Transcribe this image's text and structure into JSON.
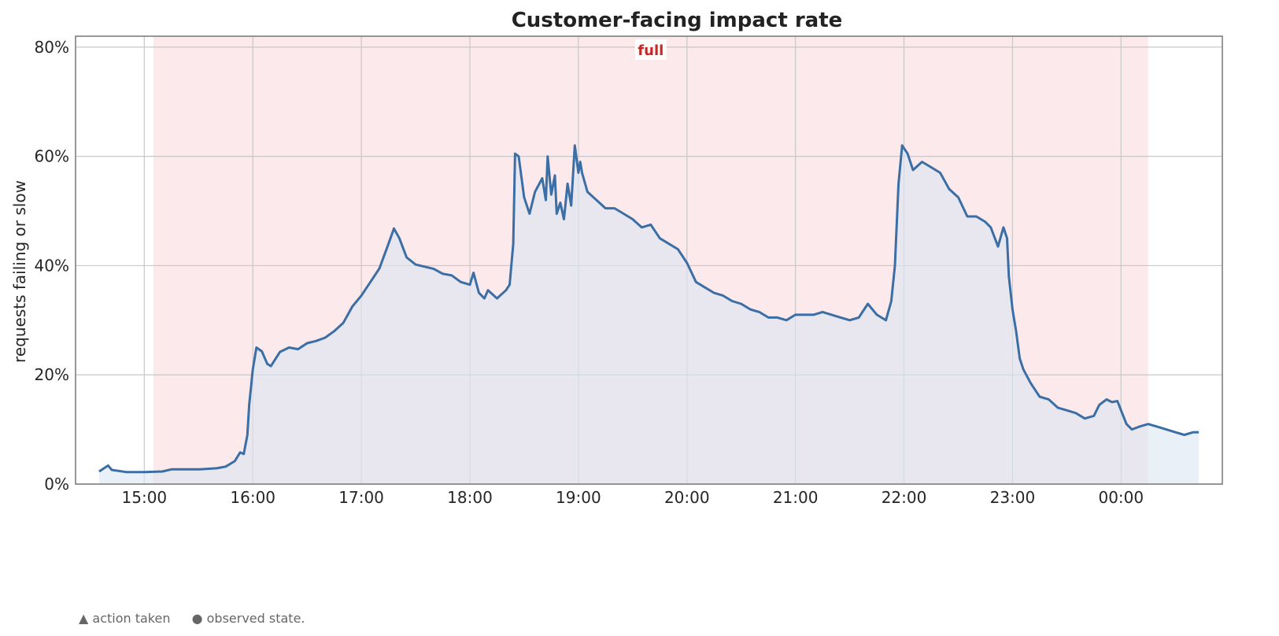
{
  "chart_data": {
    "type": "area",
    "title": "Customer-facing impact rate",
    "ylabel": "requests failing or slow",
    "xlabel": "",
    "x_range": [
      "14:35",
      "00:43"
    ],
    "ylim": [
      0,
      82
    ],
    "y_ticks": [
      0,
      20,
      40,
      60,
      80
    ],
    "y_tick_labels": [
      "0%",
      "20%",
      "40%",
      "60%",
      "80%"
    ],
    "x_ticks": [
      "15:00",
      "16:00",
      "17:00",
      "18:00",
      "19:00",
      "20:00",
      "21:00",
      "22:00",
      "23:00",
      "00:00"
    ],
    "grid": true,
    "bands": [
      {
        "label": "full",
        "start": "15:05",
        "end": "00:15",
        "color": "#fbe9eb",
        "label_color": "#c62828"
      }
    ],
    "series": [
      {
        "color": "#3b6ea5",
        "fill": "#dce6f1",
        "points": [
          [
            "14:35",
            2.3
          ],
          [
            "14:40",
            3.4
          ],
          [
            "14:42",
            2.6
          ],
          [
            "14:50",
            2.2
          ],
          [
            "15:00",
            2.2
          ],
          [
            "15:10",
            2.3
          ],
          [
            "15:15",
            2.7
          ],
          [
            "15:30",
            2.7
          ],
          [
            "15:40",
            2.9
          ],
          [
            "15:45",
            3.2
          ],
          [
            "15:50",
            4.2
          ],
          [
            "15:53",
            5.8
          ],
          [
            "15:55",
            5.5
          ],
          [
            "15:57",
            9.0
          ],
          [
            "15:58",
            14.5
          ],
          [
            "16:00",
            21.0
          ],
          [
            "16:02",
            25.0
          ],
          [
            "16:05",
            24.3
          ],
          [
            "16:08",
            22.0
          ],
          [
            "16:10",
            21.6
          ],
          [
            "16:15",
            24.2
          ],
          [
            "16:20",
            25.0
          ],
          [
            "16:25",
            24.7
          ],
          [
            "16:30",
            25.8
          ],
          [
            "16:35",
            26.2
          ],
          [
            "16:40",
            26.8
          ],
          [
            "16:45",
            28.0
          ],
          [
            "16:50",
            29.5
          ],
          [
            "16:55",
            32.5
          ],
          [
            "17:00",
            34.5
          ],
          [
            "17:05",
            37.0
          ],
          [
            "17:10",
            39.5
          ],
          [
            "17:15",
            44.0
          ],
          [
            "17:18",
            46.8
          ],
          [
            "17:21",
            45.0
          ],
          [
            "17:25",
            41.5
          ],
          [
            "17:30",
            40.2
          ],
          [
            "17:35",
            39.8
          ],
          [
            "17:40",
            39.4
          ],
          [
            "17:45",
            38.5
          ],
          [
            "17:50",
            38.2
          ],
          [
            "17:55",
            37.0
          ],
          [
            "18:00",
            36.5
          ],
          [
            "18:02",
            38.7
          ],
          [
            "18:05",
            35.0
          ],
          [
            "18:08",
            34.0
          ],
          [
            "18:10",
            35.5
          ],
          [
            "18:15",
            34.0
          ],
          [
            "18:20",
            35.5
          ],
          [
            "18:22",
            36.5
          ],
          [
            "18:24",
            44.0
          ],
          [
            "18:25",
            60.5
          ],
          [
            "18:27",
            60.0
          ],
          [
            "18:30",
            52.5
          ],
          [
            "18:33",
            49.5
          ],
          [
            "18:36",
            53.5
          ],
          [
            "18:40",
            56.0
          ],
          [
            "18:42",
            52.0
          ],
          [
            "18:43",
            60.0
          ],
          [
            "18:45",
            53.0
          ],
          [
            "18:47",
            56.5
          ],
          [
            "18:48",
            49.5
          ],
          [
            "18:50",
            51.5
          ],
          [
            "18:52",
            48.5
          ],
          [
            "18:54",
            55.0
          ],
          [
            "18:56",
            51.0
          ],
          [
            "18:58",
            62.0
          ],
          [
            "19:00",
            57.0
          ],
          [
            "19:01",
            59.0
          ],
          [
            "19:02",
            57.0
          ],
          [
            "19:05",
            53.5
          ],
          [
            "19:10",
            52.0
          ],
          [
            "19:15",
            50.5
          ],
          [
            "19:20",
            50.5
          ],
          [
            "19:25",
            49.5
          ],
          [
            "19:30",
            48.5
          ],
          [
            "19:35",
            47.0
          ],
          [
            "19:40",
            47.5
          ],
          [
            "19:45",
            45.0
          ],
          [
            "19:50",
            44.0
          ],
          [
            "19:55",
            43.0
          ],
          [
            "20:00",
            40.5
          ],
          [
            "20:05",
            37.0
          ],
          [
            "20:10",
            36.0
          ],
          [
            "20:15",
            35.0
          ],
          [
            "20:20",
            34.5
          ],
          [
            "20:25",
            33.5
          ],
          [
            "20:30",
            33.0
          ],
          [
            "20:35",
            32.0
          ],
          [
            "20:40",
            31.5
          ],
          [
            "20:45",
            30.5
          ],
          [
            "20:50",
            30.5
          ],
          [
            "20:55",
            30.0
          ],
          [
            "21:00",
            31.0
          ],
          [
            "21:05",
            31.0
          ],
          [
            "21:10",
            31.0
          ],
          [
            "21:15",
            31.5
          ],
          [
            "21:20",
            31.0
          ],
          [
            "21:25",
            30.5
          ],
          [
            "21:30",
            30.0
          ],
          [
            "21:35",
            30.5
          ],
          [
            "21:40",
            33.0
          ],
          [
            "21:45",
            31.0
          ],
          [
            "21:50",
            30.0
          ],
          [
            "21:53",
            33.5
          ],
          [
            "21:55",
            40.0
          ],
          [
            "21:57",
            55.0
          ],
          [
            "21:59",
            62.0
          ],
          [
            "22:02",
            60.5
          ],
          [
            "22:05",
            57.5
          ],
          [
            "22:10",
            59.0
          ],
          [
            "22:15",
            58.0
          ],
          [
            "22:20",
            57.0
          ],
          [
            "22:25",
            54.0
          ],
          [
            "22:30",
            52.5
          ],
          [
            "22:35",
            49.0
          ],
          [
            "22:40",
            49.0
          ],
          [
            "22:45",
            48.0
          ],
          [
            "22:48",
            47.0
          ],
          [
            "22:52",
            43.5
          ],
          [
            "22:55",
            47.0
          ],
          [
            "22:57",
            45.0
          ],
          [
            "22:58",
            38.0
          ],
          [
            "23:00",
            32.0
          ],
          [
            "23:02",
            28.0
          ],
          [
            "23:04",
            23.0
          ],
          [
            "23:06",
            21.0
          ],
          [
            "23:10",
            18.5
          ],
          [
            "23:15",
            16.0
          ],
          [
            "23:20",
            15.5
          ],
          [
            "23:25",
            14.0
          ],
          [
            "23:30",
            13.5
          ],
          [
            "23:35",
            13.0
          ],
          [
            "23:40",
            12.0
          ],
          [
            "23:45",
            12.5
          ],
          [
            "23:48",
            14.5
          ],
          [
            "23:52",
            15.5
          ],
          [
            "23:55",
            15.0
          ],
          [
            "23:58",
            15.2
          ],
          [
            "00:00",
            13.5
          ],
          [
            "00:03",
            11.0
          ],
          [
            "00:06",
            10.0
          ],
          [
            "00:10",
            10.5
          ],
          [
            "00:15",
            11.0
          ],
          [
            "00:20",
            10.5
          ],
          [
            "00:25",
            10.0
          ],
          [
            "00:30",
            9.5
          ],
          [
            "00:35",
            9.0
          ],
          [
            "00:40",
            9.5
          ],
          [
            "00:43",
            9.5
          ]
        ]
      }
    ]
  },
  "legend": {
    "action": "▲ action taken",
    "observed": "● observed state."
  }
}
